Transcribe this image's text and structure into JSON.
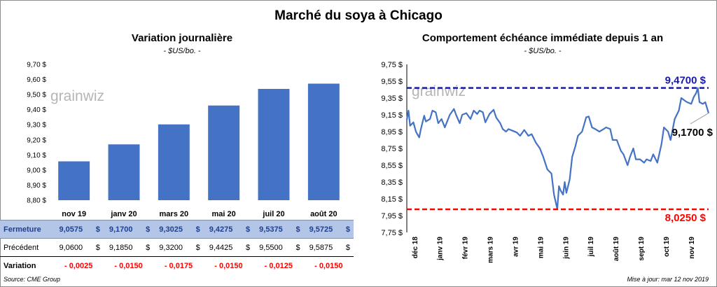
{
  "title": "Marché du soya à Chicago",
  "left_panel": {
    "subtitle": "Variation journalière",
    "unit": "- $US/bo. -",
    "watermark": "grainwiz"
  },
  "right_panel": {
    "subtitle": "Comportement échéance immédiate depuis 1 an",
    "unit": "- $US/bo. -",
    "watermark": "grainwiz"
  },
  "table": {
    "rows": [
      {
        "label": "Fermeture",
        "values": [
          "9,0575",
          "9,1700",
          "9,3025",
          "9,4275",
          "9,5375",
          "9,5725"
        ],
        "currency": "$"
      },
      {
        "label": "Précédent",
        "values": [
          "9,0600",
          "9,1850",
          "9,3200",
          "9,4425",
          "9,5500",
          "9,5875"
        ],
        "currency": "$"
      },
      {
        "label": "Variation",
        "values": [
          "- 0,0025",
          "- 0,0150",
          "- 0,0175",
          "- 0,0150",
          "- 0,0125",
          "- 0,0150"
        ]
      }
    ]
  },
  "footer": {
    "source": "Source: CME Group",
    "updated": "Mise à jour: mar 12 nov 2019"
  },
  "colors": {
    "bar": "#4472c4",
    "line": "#4472c4",
    "high": "#1a1aa8",
    "low": "#ff0000",
    "close_row": "#b4c6e7"
  },
  "chart_data": [
    {
      "type": "bar",
      "title": "Variation journalière",
      "ylabel": "- $US/bo. -",
      "categories": [
        "nov 19",
        "janv 20",
        "mars 20",
        "mai 20",
        "juil 20",
        "août 20"
      ],
      "values": [
        9.0575,
        9.17,
        9.3025,
        9.4275,
        9.5375,
        9.5725
      ],
      "ylim": [
        8.8,
        9.7
      ],
      "yticks": [
        "8,80 $",
        "8,90 $",
        "9,00 $",
        "9,10 $",
        "9,20 $",
        "9,30 $",
        "9,40 $",
        "9,50 $",
        "9,60 $",
        "9,70 $"
      ],
      "grid": false,
      "legend": "none"
    },
    {
      "type": "line",
      "title": "Comportement échéance immédiate depuis 1 an",
      "ylabel": "- $US/bo. -",
      "ylim": [
        7.75,
        9.75
      ],
      "yticks": [
        "7,75 $",
        "7,95 $",
        "8,15 $",
        "8,35 $",
        "8,55 $",
        "8,75 $",
        "8,95 $",
        "9,15 $",
        "9,35 $",
        "9,55 $",
        "9,75 $"
      ],
      "xticks": [
        "déc 18",
        "janv 19",
        "févr 19",
        "mars 19",
        "avr 19",
        "mai 19",
        "juin 19",
        "juil 19",
        "août 19",
        "sept 19",
        "oct 19",
        "nov 19"
      ],
      "x_start": "2018-11-12",
      "x_end": "2019-11-12",
      "series": [
        {
          "points": [
            [
              "2018-11-12",
              9.09
            ],
            [
              "2018-11-14",
              9.2
            ],
            [
              "2018-11-16",
              9.02
            ],
            [
              "2018-11-20",
              9.06
            ],
            [
              "2018-11-23",
              8.95
            ],
            [
              "2018-11-27",
              8.88
            ],
            [
              "2018-11-29",
              8.98
            ],
            [
              "2018-12-03",
              9.14
            ],
            [
              "2018-12-05",
              9.07
            ],
            [
              "2018-12-10",
              9.1
            ],
            [
              "2018-12-13",
              9.2
            ],
            [
              "2018-12-17",
              9.18
            ],
            [
              "2018-12-20",
              9.05
            ],
            [
              "2018-12-24",
              9.1
            ],
            [
              "2018-12-28",
              9.0
            ],
            [
              "2019-01-03",
              9.15
            ],
            [
              "2019-01-08",
              9.22
            ],
            [
              "2019-01-11",
              9.14
            ],
            [
              "2019-01-15",
              9.05
            ],
            [
              "2019-01-18",
              9.15
            ],
            [
              "2019-01-23",
              9.17
            ],
            [
              "2019-01-28",
              9.1
            ],
            [
              "2019-02-01",
              9.2
            ],
            [
              "2019-02-05",
              9.16
            ],
            [
              "2019-02-08",
              9.2
            ],
            [
              "2019-02-12",
              9.18
            ],
            [
              "2019-02-15",
              9.06
            ],
            [
              "2019-02-20",
              9.16
            ],
            [
              "2019-02-25",
              9.21
            ],
            [
              "2019-02-28",
              9.12
            ],
            [
              "2019-03-05",
              9.05
            ],
            [
              "2019-03-08",
              8.98
            ],
            [
              "2019-03-12",
              8.95
            ],
            [
              "2019-03-15",
              8.98
            ],
            [
              "2019-03-20",
              8.96
            ],
            [
              "2019-03-25",
              8.94
            ],
            [
              "2019-03-29",
              8.9
            ],
            [
              "2019-04-03",
              8.97
            ],
            [
              "2019-04-08",
              8.9
            ],
            [
              "2019-04-12",
              8.92
            ],
            [
              "2019-04-17",
              8.82
            ],
            [
              "2019-04-22",
              8.75
            ],
            [
              "2019-04-26",
              8.65
            ],
            [
              "2019-05-01",
              8.5
            ],
            [
              "2019-05-06",
              8.45
            ],
            [
              "2019-05-09",
              8.2
            ],
            [
              "2019-05-13",
              8.03
            ],
            [
              "2019-05-15",
              8.3
            ],
            [
              "2019-05-17",
              8.25
            ],
            [
              "2019-05-20",
              8.2
            ],
            [
              "2019-05-22",
              8.35
            ],
            [
              "2019-05-24",
              8.22
            ],
            [
              "2019-05-28",
              8.38
            ],
            [
              "2019-05-31",
              8.65
            ],
            [
              "2019-06-04",
              8.78
            ],
            [
              "2019-06-07",
              8.9
            ],
            [
              "2019-06-12",
              8.95
            ],
            [
              "2019-06-17",
              9.12
            ],
            [
              "2019-06-20",
              9.13
            ],
            [
              "2019-06-24",
              9.0
            ],
            [
              "2019-06-28",
              8.98
            ],
            [
              "2019-07-03",
              8.95
            ],
            [
              "2019-07-08",
              8.98
            ],
            [
              "2019-07-11",
              9.0
            ],
            [
              "2019-07-16",
              8.98
            ],
            [
              "2019-07-19",
              8.85
            ],
            [
              "2019-07-24",
              8.85
            ],
            [
              "2019-07-29",
              8.72
            ],
            [
              "2019-08-01",
              8.68
            ],
            [
              "2019-08-06",
              8.55
            ],
            [
              "2019-08-09",
              8.65
            ],
            [
              "2019-08-13",
              8.75
            ],
            [
              "2019-08-16",
              8.62
            ],
            [
              "2019-08-21",
              8.62
            ],
            [
              "2019-08-26",
              8.58
            ],
            [
              "2019-08-29",
              8.62
            ],
            [
              "2019-09-03",
              8.6
            ],
            [
              "2019-09-06",
              8.68
            ],
            [
              "2019-09-11",
              8.58
            ],
            [
              "2019-09-16",
              8.8
            ],
            [
              "2019-09-19",
              9.0
            ],
            [
              "2019-09-24",
              8.95
            ],
            [
              "2019-09-27",
              8.85
            ],
            [
              "2019-10-02",
              9.1
            ],
            [
              "2019-10-07",
              9.2
            ],
            [
              "2019-10-10",
              9.35
            ],
            [
              "2019-10-14",
              9.32
            ],
            [
              "2019-10-17",
              9.3
            ],
            [
              "2019-10-22",
              9.28
            ],
            [
              "2019-10-25",
              9.36
            ],
            [
              "2019-10-28",
              9.41
            ],
            [
              "2019-10-30",
              9.47
            ],
            [
              "2019-11-01",
              9.3
            ],
            [
              "2019-11-05",
              9.28
            ],
            [
              "2019-11-08",
              9.3
            ],
            [
              "2019-11-12",
              9.17
            ]
          ]
        }
      ],
      "reference_lines": [
        {
          "value": 9.47,
          "label": "9,4700 $",
          "color": "#1a1aa8",
          "style": "dashed"
        },
        {
          "value": 8.025,
          "label": "8,0250 $",
          "color": "#ff0000",
          "style": "dashed"
        }
      ],
      "last_value_label": "9,1700 $",
      "grid": false,
      "legend": "none"
    }
  ]
}
